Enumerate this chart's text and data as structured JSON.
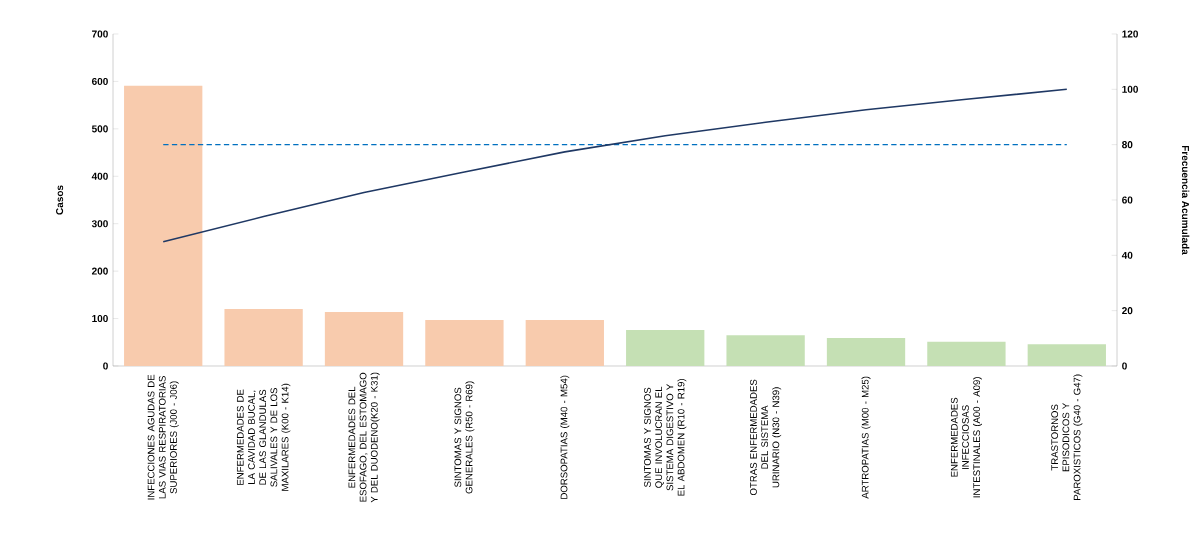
{
  "chart_data": {
    "type": "bar",
    "categories": [
      "INFECCIONES AGUDAS DE LAS VIAS RESPIRATORIAS SUPERIORES (J00 - J06)",
      "ENFERMEDADES DE LA CAVIDAD BUCAL, DE LAS GLANDULAS SALIVALES Y DE LOS MAXILARES (K00 - K14)",
      "ENFERMEDADES DEL ESOFAGO, DEL ESTOMAGO Y DEL DUODENO(K20 - K31)",
      "SINTOMAS Y SIGNOS GENERALES (R50 - R69)",
      "DORSOPATIAS (M40 - M54)",
      "SINTOMAS Y SIGNOS QUE INVOLUCRAN EL SISTEMA DIGESTIVO Y EL ABDOMEN (R10 - R19)",
      "OTRAS ENFERMEDADES DEL SISTEMA URINARIO (N30 - N39)",
      "ARTROPATIAS (M00 - M25)",
      "ENFERMEDADES INFECCIOSAS INTESTINALES (A00 - A09)",
      "TRASTORNOS EPISODICOS Y PAROXISTICOS (G40 - G47)"
    ],
    "series": [
      {
        "colors": [
          "#f8cbad",
          "#f8cbad",
          "#f8cbad",
          "#f8cbad",
          "#f8cbad",
          "#c5e0b4",
          "#c5e0b4",
          "#c5e0b4",
          "#c5e0b4",
          "#c5e0b4"
        ],
        "values": [
          591,
          120,
          114,
          97,
          97,
          76,
          65,
          59,
          51,
          46
        ]
      },
      {
        "type": "line",
        "axis": "y2",
        "color": "#1f3864",
        "values": [
          44.9,
          54.0,
          62.7,
          70.1,
          77.4,
          83.2,
          88.1,
          92.6,
          96.4,
          100
        ]
      }
    ],
    "ylabel": "Casos",
    "y2label": "Frecuencia Acumulada",
    "ylim": [
      0,
      700
    ],
    "yticks": [
      0,
      100,
      200,
      300,
      400,
      500,
      600,
      700
    ],
    "y2lim": [
      0,
      120
    ],
    "y2ticks": [
      0,
      20,
      40,
      60,
      80,
      100,
      120
    ],
    "ref_lines": [
      {
        "axis": "y2",
        "value": 80,
        "color": "#0070c0",
        "line_style": "dashed"
      }
    ],
    "grid": false
  }
}
